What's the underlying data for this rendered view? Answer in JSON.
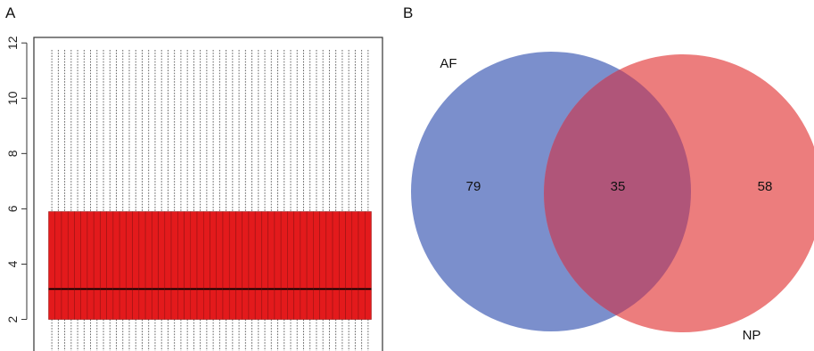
{
  "panels": {
    "a": {
      "label": "A"
    },
    "b": {
      "label": "B"
    }
  },
  "chart_data": [
    {
      "type": "boxplot",
      "panel": "A",
      "title": "",
      "xlabel": "",
      "ylabel": "",
      "ylim": [
        0.6,
        12.2
      ],
      "yticks": [
        "2",
        "4",
        "6",
        "8",
        "10",
        "12"
      ],
      "n_boxes": 50,
      "box": {
        "q1": 2.0,
        "median": 3.1,
        "q3": 5.9,
        "lower_whisker_end": 0.8,
        "upper_whisker_end": 11.75
      },
      "box_color": "#e31a1c",
      "median_color": "#000000",
      "grid": false
    },
    {
      "type": "venn",
      "panel": "B",
      "title": "",
      "sets": [
        {
          "name": "AF",
          "only_count": "79",
          "color": "#7b8fcc"
        },
        {
          "name": "NP",
          "only_count": "58",
          "color": "#ec7d7d"
        }
      ],
      "intersection_count": "35",
      "intersection_color": "#b05579"
    }
  ]
}
